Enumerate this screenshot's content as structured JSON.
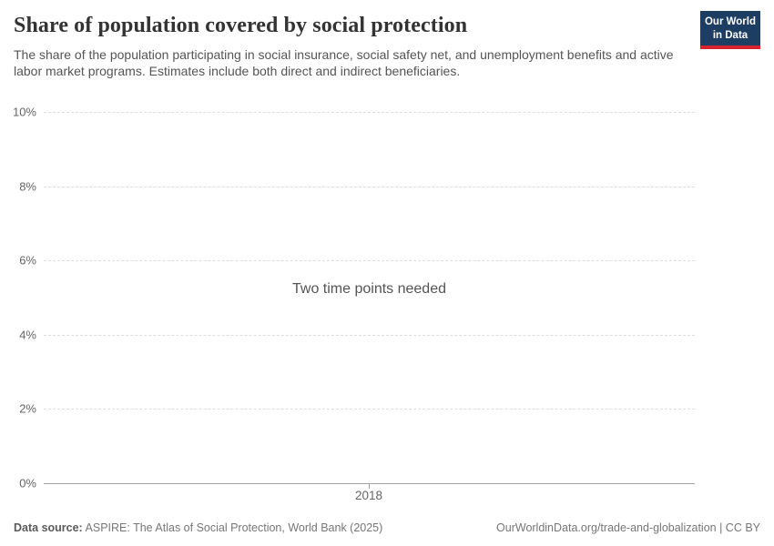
{
  "header": {
    "title": "Share of population covered by social protection",
    "subtitle": "The share of the population participating in social insurance, social safety net, and unemployment benefits and active labor market programs. Estimates include both direct and indirect beneficiaries.",
    "logo": {
      "line1": "Our World",
      "line2": "in Data",
      "bg_color": "#1d3d63",
      "stripe_color": "#d8232f"
    }
  },
  "chart_data": {
    "type": "line",
    "title": "Share of population covered by social protection",
    "series": [],
    "message": "Two time points needed",
    "x_ticks": [
      "2018"
    ],
    "y_ticks": [
      "0%",
      "2%",
      "4%",
      "6%",
      "8%",
      "10%"
    ],
    "ylim": [
      0,
      10
    ],
    "grid": true,
    "legend": "none",
    "grid_color": "#dedede",
    "axis_color": "#a3a3a3"
  },
  "footer": {
    "source_label": "Data source:",
    "source_text": " ASPIRE: The Atlas of Social Protection, World Bank (2025)",
    "credit": "OurWorldinData.org/trade-and-globalization | CC BY"
  }
}
